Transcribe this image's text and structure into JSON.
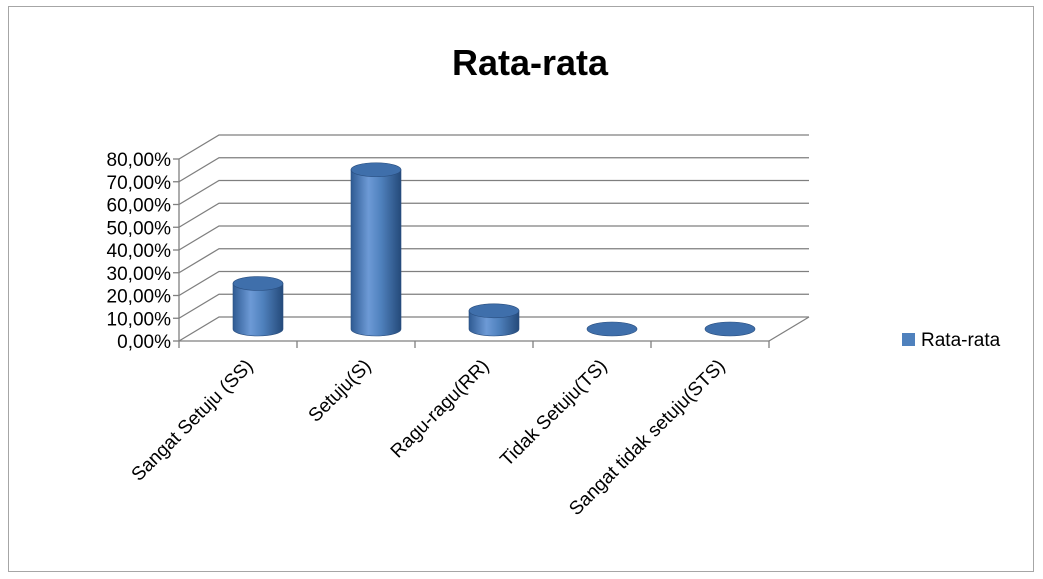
{
  "chart_data": {
    "type": "bar",
    "title": "Rata-rata",
    "categories": [
      "Sangat Setuju (SS)",
      "Setuju(S)",
      "Ragu-ragu(RR)",
      "Tidak Setuju(TS)",
      "Sangat tidak setuju(STS)"
    ],
    "series": [
      {
        "name": "Rata-rata",
        "values": [
          0.2,
          0.7,
          0.08,
          0.0,
          0.0
        ],
        "color": "#4f81bd"
      }
    ],
    "ylim": [
      0,
      0.8
    ],
    "yticks": [
      "0,00%",
      "10,00%",
      "20,00%",
      "30,00%",
      "40,00%",
      "50,00%",
      "60,00%",
      "70,00%",
      "80,00%"
    ],
    "grid": true,
    "legend_position": "right",
    "style": "3d-cylinder"
  }
}
